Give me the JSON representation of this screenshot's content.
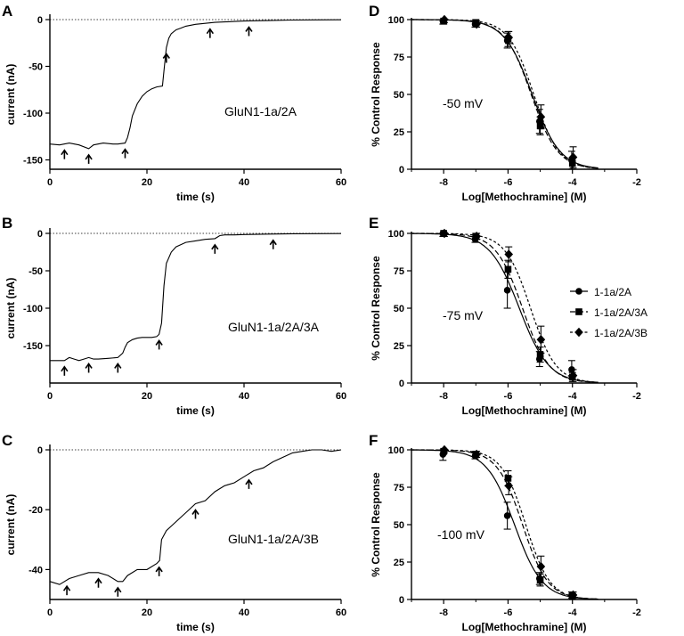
{
  "chart_data": [
    {
      "panel": "A",
      "type": "line",
      "xlabel": "time (s)",
      "ylabel": "current (nA)",
      "annotation": "GluN1-1a/2A",
      "xlim": [
        0,
        60
      ],
      "ylim": [
        -160,
        0
      ],
      "xticks": [
        0,
        20,
        40,
        60
      ],
      "yticks": [
        0,
        -50,
        -100,
        -150
      ],
      "baseline": 0,
      "trace": {
        "x": [
          0,
          2,
          4,
          6,
          8,
          9,
          11,
          13,
          14,
          15.5,
          16,
          16.5,
          17,
          18,
          19,
          20,
          21,
          22,
          23.2,
          23.6,
          24,
          24.5,
          25,
          26,
          27,
          28,
          30,
          32,
          34,
          38,
          40,
          45,
          50,
          55,
          60
        ],
        "y": [
          -133,
          -134,
          -132,
          -134,
          -138,
          -134,
          -132,
          -133,
          -133,
          -132,
          -126,
          -116,
          -103,
          -90,
          -82,
          -77,
          -74,
          -72,
          -71,
          -50,
          -30,
          -20,
          -15,
          -11,
          -9,
          -7,
          -5,
          -4,
          -3,
          -2,
          -1.5,
          -1,
          -0.5,
          -0.3,
          -0.2
        ]
      },
      "arrows_x": [
        3,
        8,
        15.5,
        24,
        33,
        41
      ]
    },
    {
      "panel": "B",
      "type": "line",
      "xlabel": "time (s)",
      "ylabel": "current (nA)",
      "annotation": "GluN1-1a/2A/3A",
      "xlim": [
        0,
        60
      ],
      "ylim": [
        -200,
        0
      ],
      "xticks": [
        0,
        20,
        40,
        60
      ],
      "yticks": [
        0,
        -50,
        -100,
        -150
      ],
      "baseline": 0,
      "trace": {
        "x": [
          0,
          2,
          3,
          4,
          5,
          6,
          7,
          8,
          9,
          10,
          12,
          14,
          15,
          15.5,
          16,
          17,
          18,
          19,
          20,
          21,
          22,
          22.5,
          23,
          23.5,
          24,
          25,
          26,
          28,
          30,
          32,
          34,
          35,
          36,
          38,
          40,
          45,
          50,
          55,
          60
        ],
        "y": [
          -170,
          -170,
          -170,
          -166,
          -168,
          -170,
          -168,
          -166,
          -168,
          -168,
          -167,
          -166,
          -160,
          -152,
          -146,
          -142,
          -140,
          -139,
          -139,
          -139,
          -138,
          -135,
          -120,
          -70,
          -40,
          -25,
          -18,
          -12,
          -10,
          -8,
          -7,
          -3,
          -2,
          -2,
          -1.5,
          -1,
          -0.5,
          -0.3,
          -0.2
        ]
      },
      "arrows_x": [
        3,
        8,
        14,
        22.5,
        34,
        46
      ]
    },
    {
      "panel": "C",
      "type": "line",
      "xlabel": "time (s)",
      "ylabel": "current (nA)",
      "annotation": "GluN1-1a/2A/3B",
      "xlim": [
        0,
        60
      ],
      "ylim": [
        -50,
        0
      ],
      "xticks": [
        0,
        20,
        40,
        60
      ],
      "yticks": [
        0,
        -20,
        -40
      ],
      "baseline": 0,
      "trace": {
        "x": [
          0,
          2,
          4,
          6,
          8,
          10,
          12,
          14,
          15,
          16,
          18,
          20,
          22,
          22.6,
          23,
          24,
          26,
          28,
          30,
          32,
          34,
          36,
          38,
          40,
          42,
          44,
          46,
          48,
          50,
          52,
          54,
          56,
          58,
          60
        ],
        "y": [
          -44,
          -45,
          -43,
          -42,
          -41,
          -41,
          -42,
          -44,
          -44,
          -42,
          -40,
          -40,
          -38,
          -37,
          -30,
          -27,
          -24,
          -21,
          -18,
          -17,
          -14,
          -12,
          -11,
          -9,
          -7,
          -6,
          -4,
          -2.5,
          -1,
          -0.5,
          0,
          0,
          -0.5,
          0
        ]
      },
      "arrows_x": [
        3.5,
        10,
        14,
        22.5,
        30,
        41
      ]
    },
    {
      "panel": "D",
      "type": "scatter",
      "xlabel": "Log[Methochramine] (M)",
      "ylabel": "% Control Response",
      "annotation": "-50 mV",
      "xlim": [
        -9,
        -2
      ],
      "ylim": [
        0,
        100
      ],
      "xticks": [
        -8,
        -6,
        -4,
        -2
      ],
      "yticks": [
        0,
        25,
        50,
        75,
        100
      ],
      "series": [
        {
          "marker": "circle",
          "dash": "solid",
          "ic50_log": -5.25,
          "hill": 1.0,
          "x": [
            -8,
            -7,
            -6,
            -5,
            -4
          ],
          "y": [
            99,
            97,
            86,
            32,
            6
          ],
          "err": [
            2,
            2,
            5,
            8,
            6
          ]
        },
        {
          "marker": "square",
          "dash": "long",
          "ic50_log": -5.28,
          "hill": 1.05,
          "x": [
            -8,
            -7,
            -6,
            -5,
            -4
          ],
          "y": [
            99,
            98,
            87,
            29,
            4
          ],
          "err": [
            2,
            2,
            5,
            6,
            4
          ]
        },
        {
          "marker": "diamond",
          "dash": "short",
          "ic50_log": -5.2,
          "hill": 1.1,
          "x": [
            -8,
            -7,
            -6,
            -5,
            -4
          ],
          "y": [
            100,
            97,
            88,
            35,
            8
          ],
          "err": [
            2,
            2,
            4,
            8,
            7
          ]
        }
      ]
    },
    {
      "panel": "E",
      "type": "scatter",
      "xlabel": "Log[Methochramine] (M)",
      "ylabel": "% Control Response",
      "annotation": "-75 mV",
      "xlim": [
        -9,
        -2
      ],
      "ylim": [
        0,
        100
      ],
      "xticks": [
        -8,
        -6,
        -4,
        -2
      ],
      "yticks": [
        0,
        25,
        50,
        75,
        100
      ],
      "legend": [
        "1-1a/2A",
        "1-1a/2A/3A",
        "1-1a/2A/3B"
      ],
      "legend_position": "right",
      "series": [
        {
          "name": "1-1a/2A",
          "marker": "circle",
          "dash": "solid",
          "ic50_log": -5.65,
          "hill": 0.95,
          "x": [
            -8,
            -7,
            -6,
            -5,
            -4
          ],
          "y": [
            100,
            96,
            62,
            16,
            9
          ],
          "err": [
            2,
            2,
            12,
            5,
            6
          ]
        },
        {
          "name": "1-1a/2A/3A",
          "marker": "square",
          "dash": "long",
          "ic50_log": -5.55,
          "hill": 1.05,
          "x": [
            -8,
            -7,
            -6,
            -5,
            -4
          ],
          "y": [
            100,
            98,
            76,
            19,
            4
          ],
          "err": [
            2,
            2,
            6,
            5,
            3
          ]
        },
        {
          "name": "1-1a/2A/3B",
          "marker": "diamond",
          "dash": "short",
          "ic50_log": -5.3,
          "hill": 1.1,
          "x": [
            -8,
            -7,
            -6,
            -5,
            -4
          ],
          "y": [
            100,
            98,
            86,
            29,
            5
          ],
          "err": [
            2,
            2,
            5,
            9,
            4
          ]
        }
      ]
    },
    {
      "panel": "F",
      "type": "scatter",
      "xlabel": "Log[Methochramine] (M)",
      "ylabel": "% Control Response",
      "annotation": "-100 mV",
      "xlim": [
        -9,
        -2
      ],
      "ylim": [
        0,
        100
      ],
      "xticks": [
        -8,
        -6,
        -4,
        -2
      ],
      "yticks": [
        0,
        25,
        50,
        75,
        100
      ],
      "series": [
        {
          "marker": "circle",
          "dash": "solid",
          "ic50_log": -5.8,
          "hill": 1.0,
          "x": [
            -8,
            -7,
            -6,
            -5,
            -4
          ],
          "y": [
            97,
            96,
            56,
            14,
            3
          ],
          "err": [
            4,
            2,
            9,
            4,
            2
          ]
        },
        {
          "marker": "square",
          "dash": "long",
          "ic50_log": -5.55,
          "hill": 1.1,
          "x": [
            -8,
            -7,
            -6,
            -5,
            -4
          ],
          "y": [
            99,
            97,
            81,
            13,
            2
          ],
          "err": [
            2,
            2,
            5,
            4,
            2
          ]
        },
        {
          "marker": "diamond",
          "dash": "short",
          "ic50_log": -5.45,
          "hill": 1.15,
          "x": [
            -8,
            -7,
            -6,
            -5,
            -4
          ],
          "y": [
            100,
            97,
            76,
            22,
            3
          ],
          "err": [
            2,
            2,
            6,
            7,
            2
          ]
        }
      ]
    }
  ]
}
